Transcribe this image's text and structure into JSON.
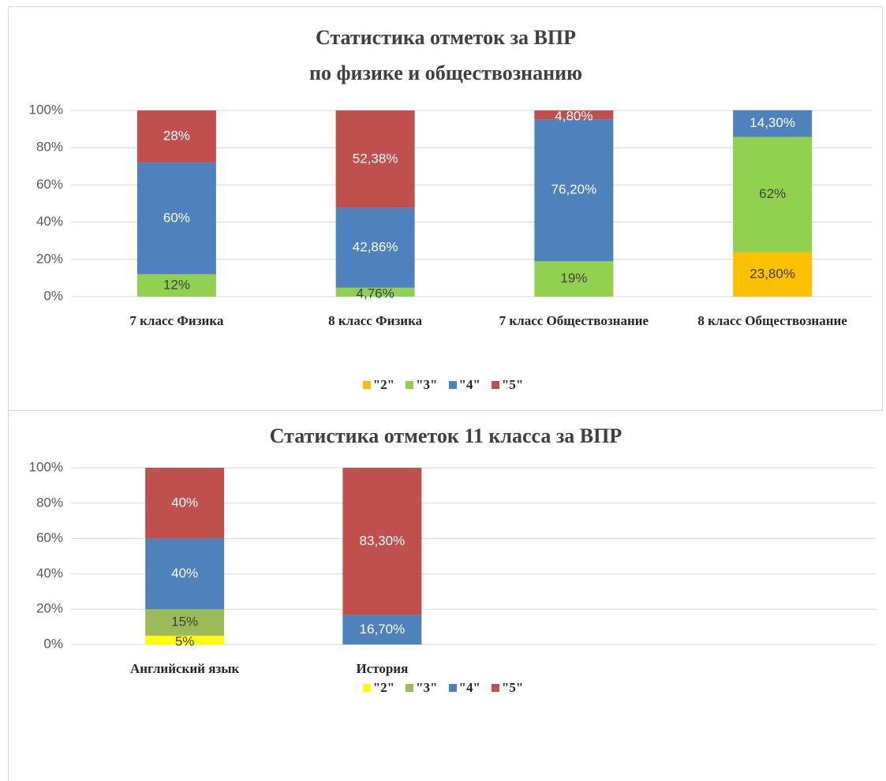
{
  "chart_data": [
    {
      "type": "bar",
      "stacked": true,
      "title": [
        "Статистика отметок за ВПР",
        "по физике и обществознанию"
      ],
      "categories": [
        "7 класс Физика",
        "8 класс Физика",
        "7 класс Обществознание",
        "8 класс Обществознание"
      ],
      "series": [
        {
          "name": "\"2\"",
          "color": "#ffc000",
          "label_color": "#404040",
          "values": [
            null,
            null,
            null,
            23.8
          ],
          "value_labels": [
            null,
            null,
            null,
            "23,80%"
          ]
        },
        {
          "name": "\"3\"",
          "color": "#92d050",
          "label_color": "#404040",
          "values": [
            12,
            4.76,
            19,
            62
          ],
          "value_labels": [
            "12%",
            "4,76%",
            "19%",
            "62%"
          ]
        },
        {
          "name": "\"4\"",
          "color": "#4f81bd",
          "label_color": "#ffffff",
          "values": [
            60,
            42.86,
            76.2,
            14.3
          ],
          "value_labels": [
            "60%",
            "42,86%",
            "76,20%",
            "14,30%"
          ]
        },
        {
          "name": "\"5\"",
          "color": "#c0504d",
          "label_color": "#ffffff",
          "values": [
            28,
            52.38,
            4.8,
            null
          ],
          "value_labels": [
            "28%",
            "52,38%",
            "4,80%",
            null
          ]
        }
      ],
      "ylim": [
        0,
        100
      ],
      "yticks": [
        {
          "value": 0,
          "label": "0%"
        },
        {
          "value": 20,
          "label": "20%"
        },
        {
          "value": 40,
          "label": "40%"
        },
        {
          "value": 60,
          "label": "60%"
        },
        {
          "value": 80,
          "label": "80%"
        },
        {
          "value": 100,
          "label": "100%"
        }
      ],
      "grid": true,
      "legend": "bottom"
    },
    {
      "type": "bar",
      "stacked": true,
      "title": [
        "Статистика отметок 11 класса за ВПР"
      ],
      "categories": [
        "Английский язык",
        "История",
        null,
        null
      ],
      "series": [
        {
          "name": "\"2\"",
          "color": "#ffff00",
          "label_color": "#404040",
          "values": [
            5,
            null,
            null,
            null
          ],
          "value_labels": [
            "5%",
            null,
            null,
            null
          ]
        },
        {
          "name": "\"3\"",
          "color": "#9bbb59",
          "label_color": "#404040",
          "values": [
            15,
            null,
            null,
            null
          ],
          "value_labels": [
            "15%",
            null,
            null,
            null
          ]
        },
        {
          "name": "\"4\"",
          "color": "#4f81bd",
          "label_color": "#ffffff",
          "values": [
            40,
            16.7,
            null,
            null
          ],
          "value_labels": [
            "40%",
            "16,70%",
            null,
            null
          ]
        },
        {
          "name": "\"5\"",
          "color": "#c0504d",
          "label_color": "#ffffff",
          "values": [
            40,
            83.3,
            null,
            null
          ],
          "value_labels": [
            "40%",
            "83,30%",
            null,
            null
          ]
        }
      ],
      "ylim": [
        0,
        100
      ],
      "yticks": [
        {
          "value": 0,
          "label": "0%"
        },
        {
          "value": 20,
          "label": "20%"
        },
        {
          "value": 40,
          "label": "40%"
        },
        {
          "value": 60,
          "label": "60%"
        },
        {
          "value": 80,
          "label": "80%"
        },
        {
          "value": 100,
          "label": "100%"
        }
      ],
      "grid": true,
      "legend": "bottom"
    }
  ]
}
